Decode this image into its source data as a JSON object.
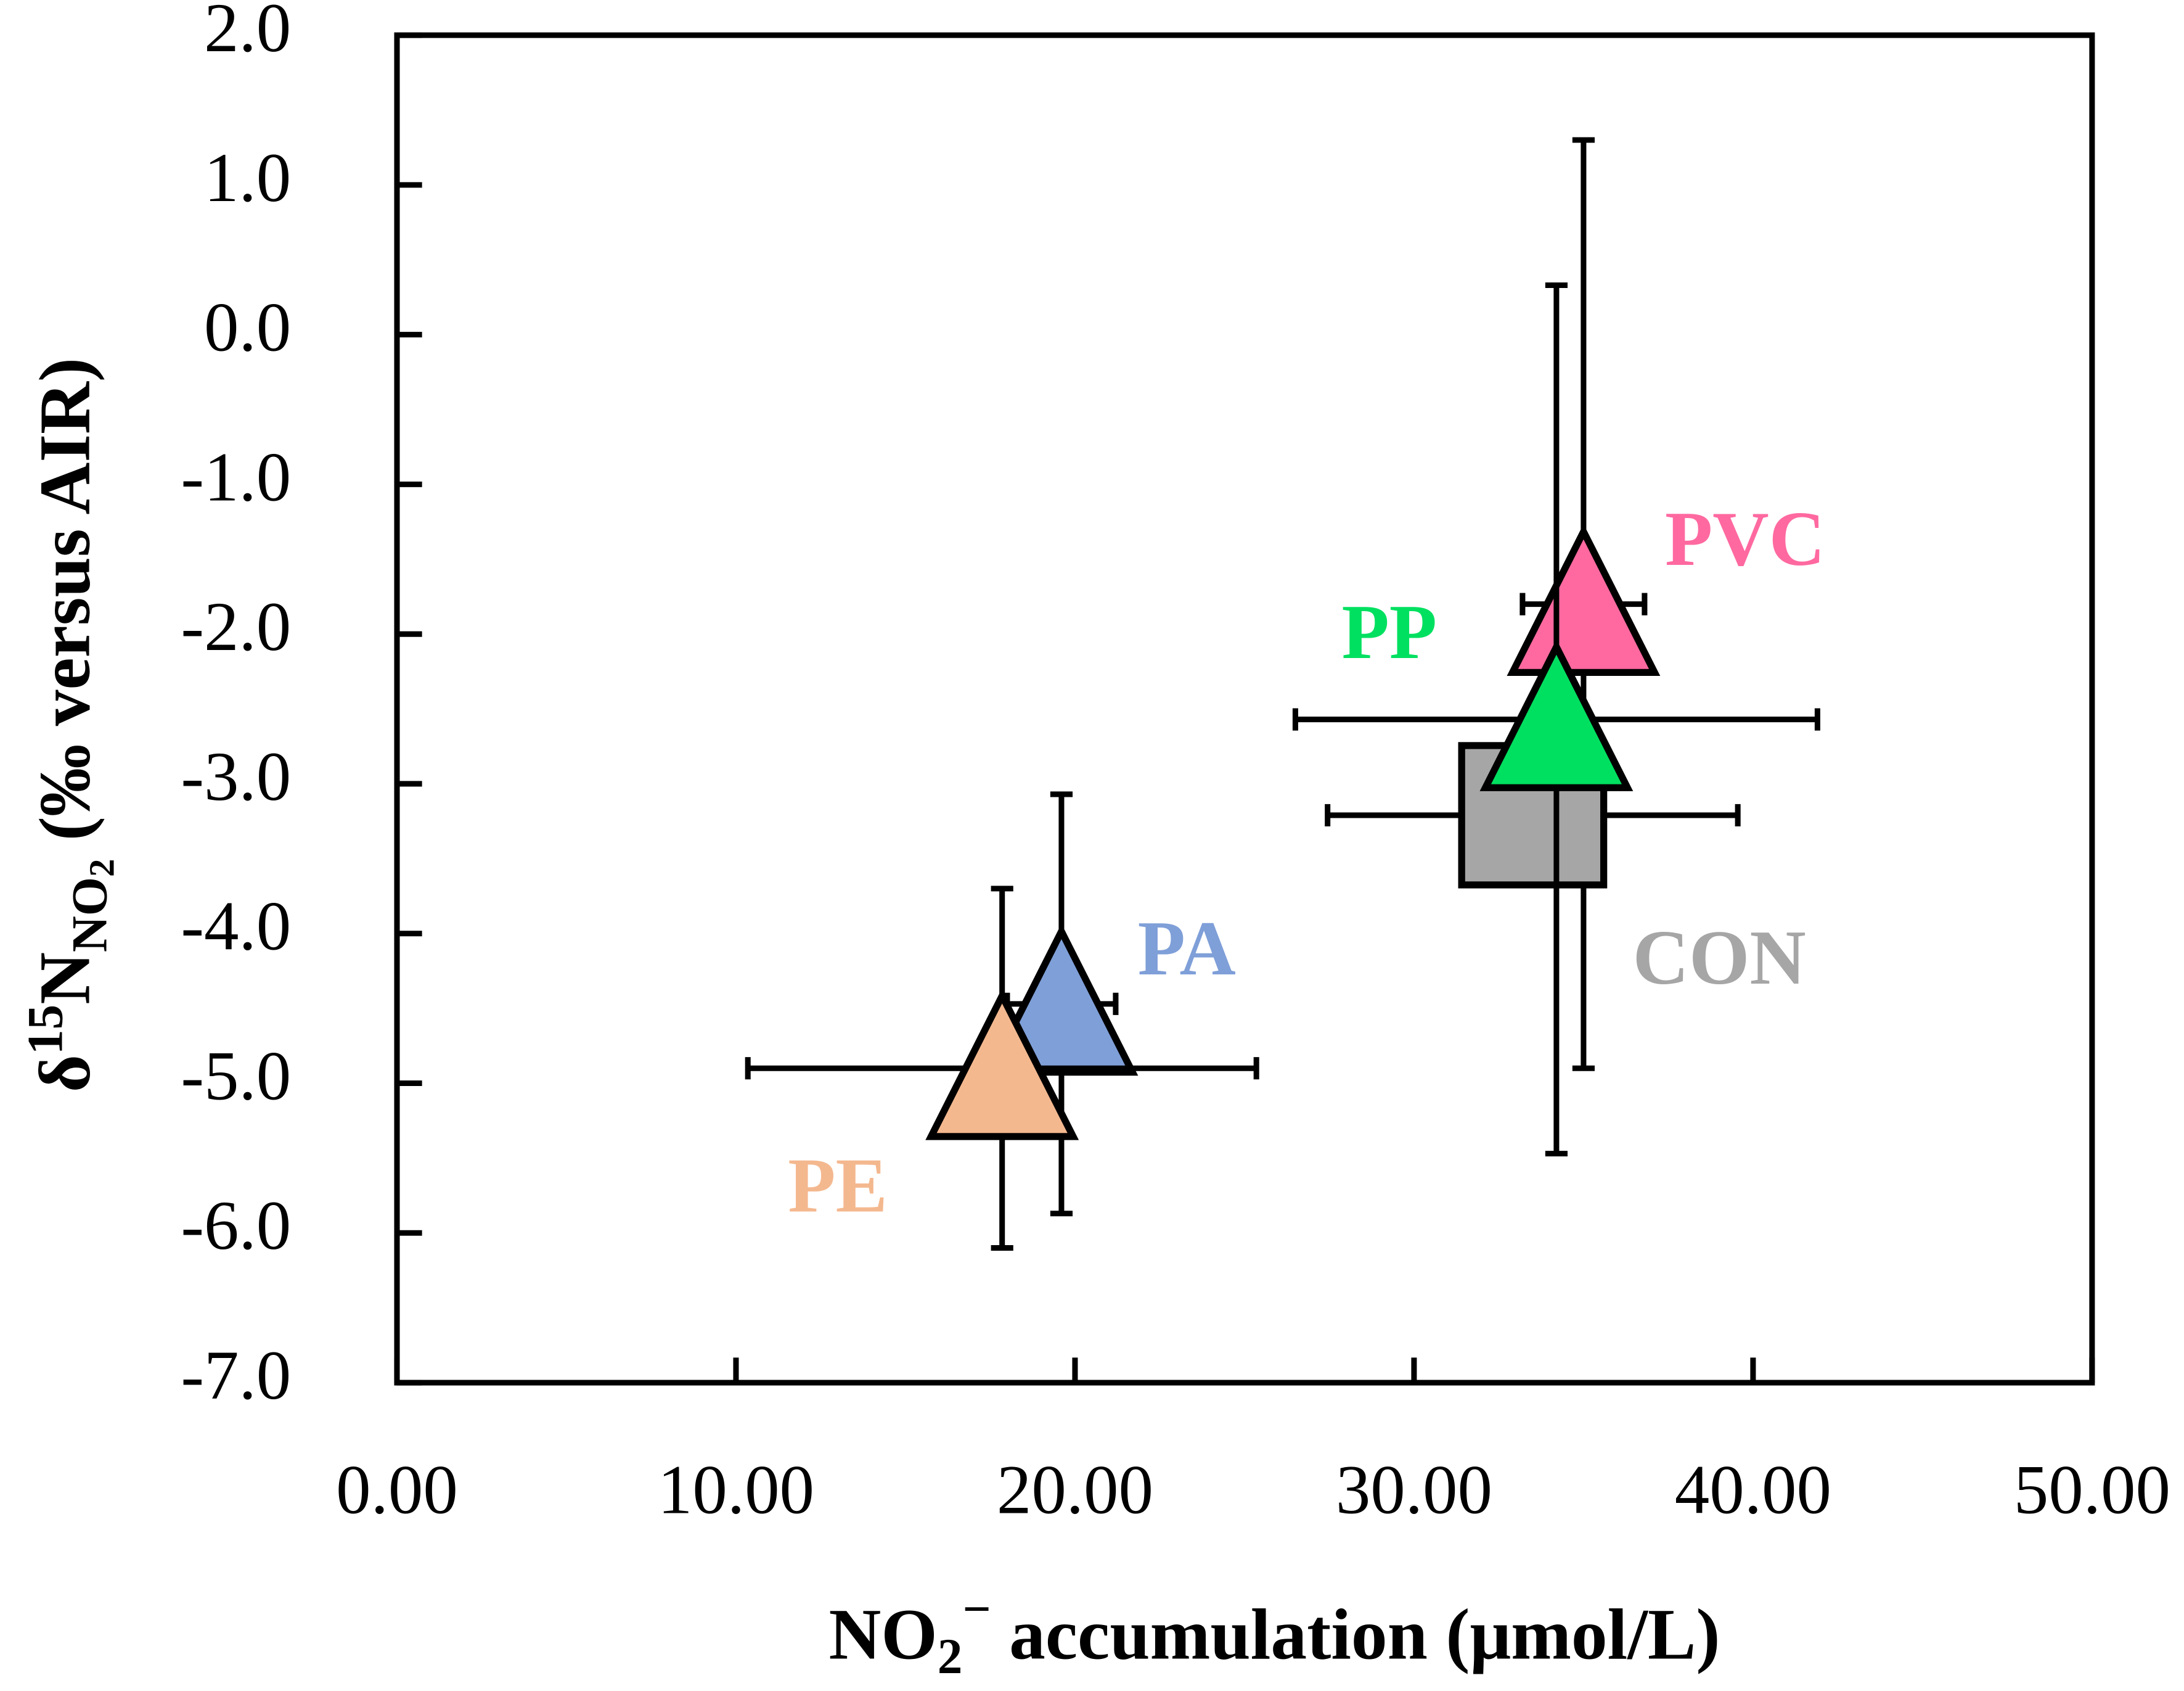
{
  "chart_data": {
    "type": "scatter",
    "xlabel": {
      "main": "NO",
      "sub": "2",
      "sup": "−",
      "rest": " accumulation (μmol/L)"
    },
    "ylabel": {
      "pre": "δ",
      "sup": "15",
      "main": "N",
      "sub": "NO",
      "subsub": "2",
      "rest": " (‰ versus AIR)"
    },
    "xlim": [
      0,
      50
    ],
    "xticks": [
      {
        "value": 0,
        "label": "0.00"
      },
      {
        "value": 10,
        "label": "10.00"
      },
      {
        "value": 20,
        "label": "20.00"
      },
      {
        "value": 30,
        "label": "30.00"
      },
      {
        "value": 40,
        "label": "40.00"
      },
      {
        "value": 50,
        "label": "50.00"
      }
    ],
    "ylim": [
      -7,
      2
    ],
    "yticks": [
      {
        "value": 2,
        "label": "2.0"
      },
      {
        "value": 1,
        "label": "1.0"
      },
      {
        "value": 0,
        "label": "0.0"
      },
      {
        "value": -1,
        "label": "-1.0"
      },
      {
        "value": -2,
        "label": "-2.0"
      },
      {
        "value": -3,
        "label": "-3.0"
      },
      {
        "value": -4,
        "label": "-4.0"
      },
      {
        "value": -5,
        "label": "-5.0"
      },
      {
        "value": -6,
        "label": "-6.0"
      },
      {
        "value": -7,
        "label": "-7.0"
      }
    ],
    "series": [
      {
        "name": "PA",
        "color": "#7f9fd8",
        "marker": "triangle",
        "x": [
          19.6
        ],
        "values": [
          -4.47
        ],
        "xerr": [
          1.6
        ],
        "yerr": [
          1.4
        ]
      },
      {
        "name": "PE",
        "color": "#f4b88f",
        "marker": "triangle",
        "x": [
          17.85
        ],
        "values": [
          -4.9
        ],
        "xerr": [
          7.5
        ],
        "yerr": [
          1.2
        ]
      },
      {
        "name": "PVC",
        "color": "#ff69a0",
        "marker": "triangle",
        "x": [
          35.0
        ],
        "values": [
          -1.8
        ],
        "xerr": [
          1.8
        ],
        "yerr": [
          3.1
        ]
      },
      {
        "name": "CON",
        "color": "#a6a6a6",
        "marker": "square",
        "x": [
          33.5
        ],
        "values": [
          -3.21
        ],
        "xerr": [
          6.05
        ],
        "yerr": [
          null
        ]
      },
      {
        "name": "PP",
        "color": "#00e060",
        "marker": "triangle",
        "x": [
          34.2
        ],
        "values": [
          -2.57
        ],
        "xerr": [
          7.7
        ],
        "yerr": [
          2.9
        ]
      }
    ]
  }
}
